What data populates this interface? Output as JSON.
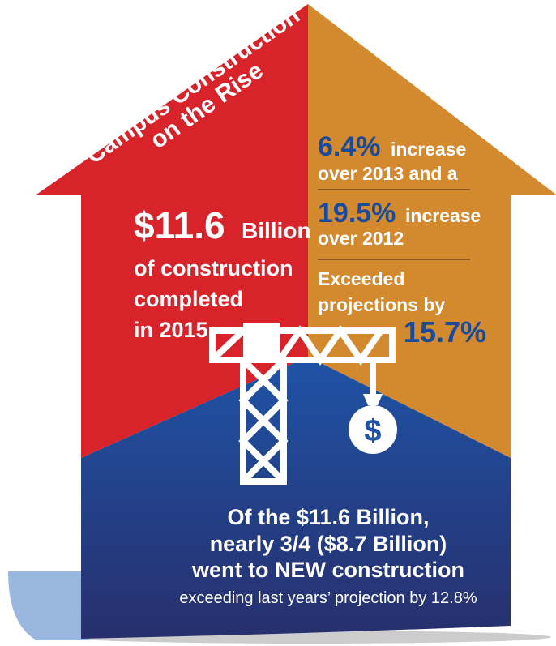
{
  "title": {
    "line1": "Campus Construction",
    "line2": "on the Rise"
  },
  "left": {
    "amount": "$11.6",
    "unit": "Billion",
    "lines": [
      "of construction",
      "completed",
      "in 2015"
    ]
  },
  "right": {
    "stats": [
      {
        "value": "6.4%",
        "label": "increase",
        "detail": "over 2013 and a"
      },
      {
        "value": "19.5%",
        "label": "increase",
        "detail": "over 2012"
      }
    ],
    "exceeded": {
      "lines": [
        "Exceeded",
        "projections by"
      ],
      "value": "15.7%"
    }
  },
  "bottom": {
    "lines": [
      "Of the $11.6 Billion,",
      "nearly 3/4 ($8.7 Billion)",
      "went to NEW construction"
    ],
    "note": "exceeding last years’ projection by 12.8%"
  },
  "icon": {
    "symbol": "$"
  }
}
